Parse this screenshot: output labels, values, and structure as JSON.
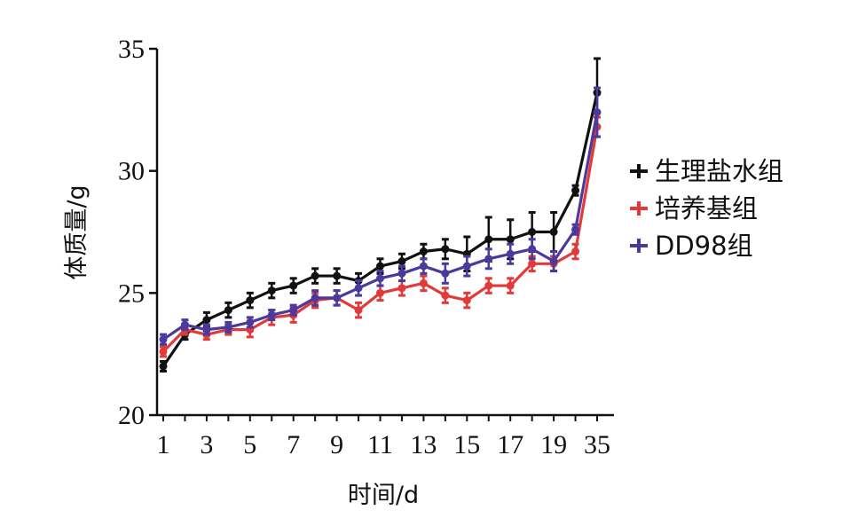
{
  "chart_data": {
    "type": "line",
    "title": "",
    "xlabel": "时间/d",
    "ylabel": "体质量/g",
    "ylim": [
      20,
      35
    ],
    "yticks": [
      20,
      25,
      30,
      35
    ],
    "x": [
      1,
      2,
      3,
      4,
      5,
      6,
      7,
      8,
      9,
      10,
      11,
      12,
      13,
      14,
      15,
      16,
      17,
      18,
      19,
      20,
      35
    ],
    "x_tick_labels": [
      "1",
      "",
      "3",
      "",
      "5",
      "",
      "7",
      "",
      "9",
      "",
      "11",
      "",
      "13",
      "",
      "15",
      "",
      "17",
      "",
      "19",
      "",
      "35"
    ],
    "legend_position": "right",
    "grid": false,
    "series": [
      {
        "name": "生理盐水组",
        "color": "#111111",
        "values": [
          22.0,
          23.3,
          23.9,
          24.3,
          24.7,
          25.1,
          25.3,
          25.7,
          25.7,
          25.5,
          26.1,
          26.3,
          26.7,
          26.8,
          26.6,
          27.2,
          27.2,
          27.5,
          27.5,
          29.2,
          33.2
        ],
        "errors": [
          0.2,
          0.2,
          0.3,
          0.3,
          0.3,
          0.3,
          0.3,
          0.3,
          0.3,
          0.3,
          0.3,
          0.3,
          0.3,
          0.4,
          0.7,
          0.9,
          0.8,
          0.8,
          0.8,
          0.2,
          1.4
        ]
      },
      {
        "name": "培养基组",
        "color": "#e23a3a",
        "values": [
          22.6,
          23.5,
          23.3,
          23.5,
          23.5,
          24.0,
          24.1,
          24.7,
          24.8,
          24.3,
          25.0,
          25.2,
          25.4,
          24.9,
          24.7,
          25.3,
          25.3,
          26.2,
          26.2,
          26.7,
          31.8
        ],
        "errors": [
          0.2,
          0.2,
          0.2,
          0.2,
          0.3,
          0.3,
          0.3,
          0.3,
          0.3,
          0.3,
          0.3,
          0.3,
          0.3,
          0.3,
          0.3,
          0.3,
          0.3,
          0.3,
          0.3,
          0.3,
          0.4
        ]
      },
      {
        "name": "DD98组",
        "color": "#4b3a9c",
        "values": [
          23.1,
          23.7,
          23.5,
          23.6,
          23.8,
          24.1,
          24.3,
          24.8,
          24.8,
          25.2,
          25.6,
          25.8,
          26.1,
          25.8,
          26.1,
          26.4,
          26.6,
          26.8,
          26.3,
          27.6,
          32.4
        ],
        "errors": [
          0.2,
          0.2,
          0.2,
          0.2,
          0.2,
          0.2,
          0.2,
          0.3,
          0.3,
          0.3,
          0.3,
          0.3,
          0.3,
          0.4,
          0.4,
          0.4,
          0.4,
          0.4,
          0.4,
          0.2,
          1.0
        ]
      }
    ]
  }
}
